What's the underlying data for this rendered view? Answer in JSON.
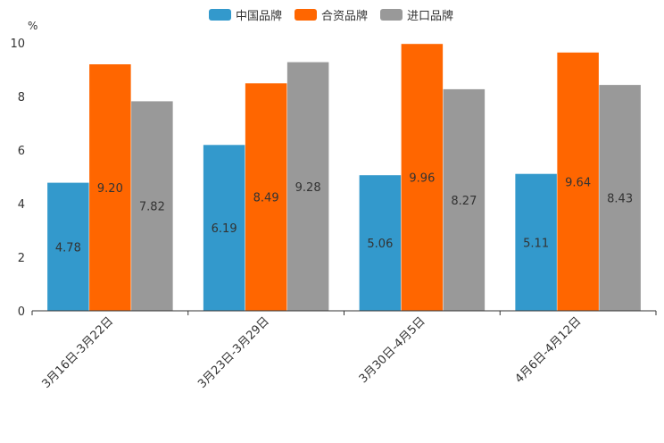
{
  "chart_data": {
    "type": "bar",
    "title": "",
    "unit_label": "%",
    "xlabel": "",
    "ylabel": "%",
    "ylim": [
      0,
      10
    ],
    "yticks": [
      0,
      2,
      4,
      6,
      8,
      10
    ],
    "grid": false,
    "legend_position": "top-center",
    "categories": [
      "3月16日-3月22日",
      "3月23日-3月29日",
      "3月30日-4月5日",
      "4月6日-4月12日"
    ],
    "series": [
      {
        "name": "中国品牌",
        "color": "#3399CC",
        "values": [
          4.78,
          6.19,
          5.06,
          5.11
        ],
        "labels": [
          "4.78",
          "6.19",
          "5.06",
          "5.11"
        ]
      },
      {
        "name": "合资品牌",
        "color": "#FF6600",
        "values": [
          9.2,
          8.49,
          9.96,
          9.64
        ],
        "labels": [
          "9.20",
          "8.49",
          "9.96",
          "9.64"
        ]
      },
      {
        "name": "进口品牌",
        "color": "#999999",
        "values": [
          7.82,
          9.28,
          8.27,
          8.43
        ],
        "labels": [
          "7.82",
          "9.28",
          "8.27",
          "8.43"
        ]
      }
    ]
  }
}
